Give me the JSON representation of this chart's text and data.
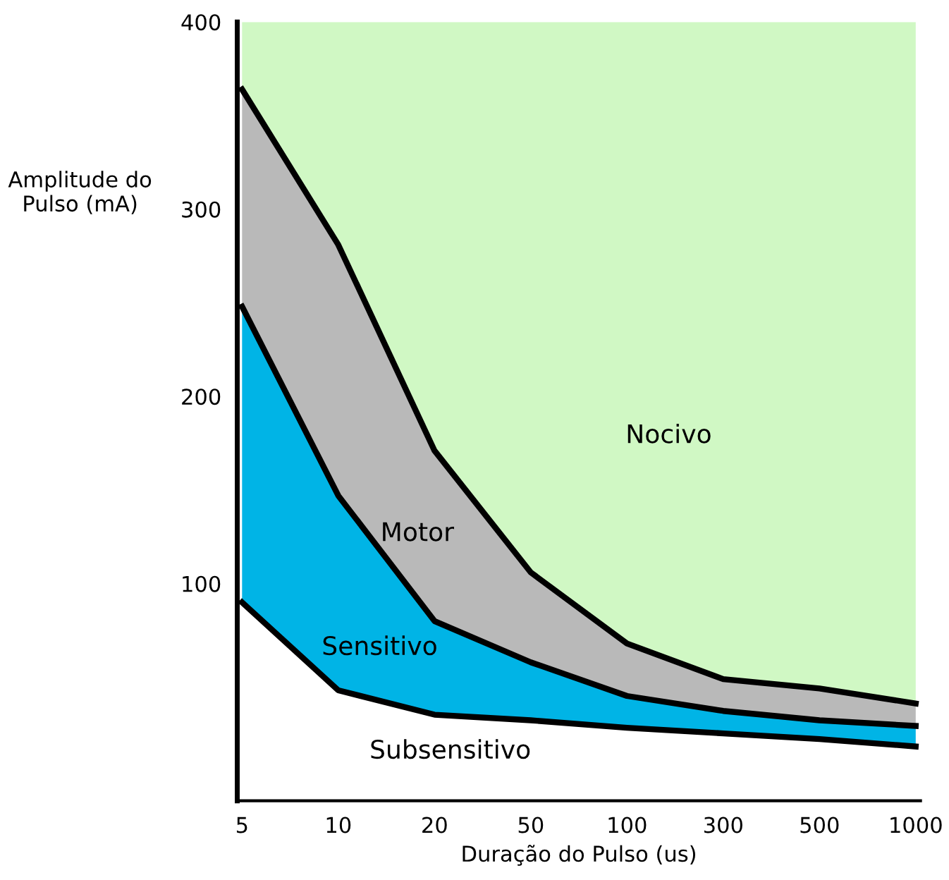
{
  "chart_data": {
    "type": "area",
    "stacked": true,
    "xlabel": "Duração do Pulso (us)",
    "ylabel": "Amplitude do\nPulso (mA)",
    "categories": [
      "5",
      "10",
      "20",
      "50",
      "100",
      "300",
      "500",
      "1000"
    ],
    "series": [
      {
        "name": "Subsensitivo",
        "color": "#ffffff",
        "line_style": "solid",
        "values": [
          90,
          43,
          30,
          27,
          23,
          20,
          17,
          13
        ]
      },
      {
        "name": "Sensitivo",
        "color": "#00b4e6",
        "line_style": "solid",
        "values": [
          158,
          104,
          50,
          31,
          17,
          12,
          10,
          11
        ]
      },
      {
        "name": "Motor",
        "color": "#b9b9b9",
        "line_style": "solid",
        "values": [
          116,
          134,
          91,
          48,
          28,
          17,
          17,
          12
        ]
      },
      {
        "name": "Nocivo",
        "color": "#d0f8c4",
        "values": [
          36,
          119,
          229,
          294,
          332,
          351,
          356,
          364
        ]
      }
    ],
    "ylim": [
      -16,
      400
    ],
    "yticks": [
      100,
      200,
      300,
      400
    ],
    "grid": false,
    "legend": false
  }
}
